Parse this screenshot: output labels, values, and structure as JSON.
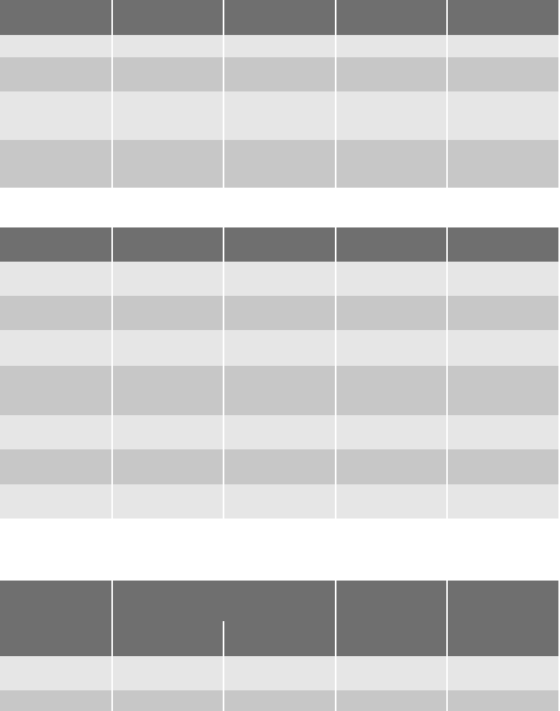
{
  "colors": {
    "header": "#6f6f6f",
    "row_light": "#e6e6e6",
    "row_dark": "#c7c7c7",
    "background": "#ffffff"
  },
  "tables": [
    {
      "header": [
        "",
        "",
        "",
        "",
        ""
      ],
      "rows": [
        [
          "",
          "",
          "",
          "",
          ""
        ],
        [
          "",
          "",
          "",
          "",
          ""
        ],
        [
          "",
          "",
          "",
          "",
          ""
        ],
        [
          "",
          "",
          "",
          "",
          ""
        ]
      ]
    },
    {
      "header": [
        "",
        "",
        "",
        "",
        ""
      ],
      "rows": [
        [
          "",
          "",
          "",
          "",
          ""
        ],
        [
          "",
          "",
          "",
          "",
          ""
        ],
        [
          "",
          "",
          "",
          "",
          ""
        ],
        [
          "",
          "",
          "",
          "",
          ""
        ],
        [
          "",
          "",
          "",
          "",
          ""
        ],
        [
          "",
          "",
          "",
          "",
          ""
        ],
        [
          "",
          "",
          "",
          "",
          ""
        ]
      ]
    },
    {
      "header": [
        "",
        "",
        "",
        "",
        ""
      ],
      "rows": [
        [
          "",
          "",
          "",
          "",
          ""
        ],
        [
          "",
          "",
          "",
          "",
          ""
        ]
      ]
    }
  ]
}
